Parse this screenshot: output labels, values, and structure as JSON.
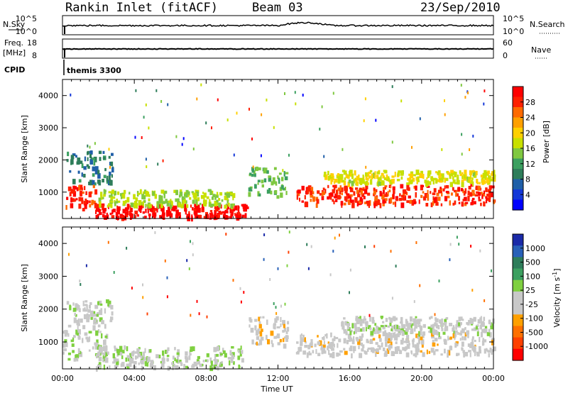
{
  "header": {
    "station": "Rankin Inlet (fitACF)",
    "beam": "Beam 03",
    "date": "23/Sep/2010"
  },
  "nsky_panel": {
    "left_label": "N.Sky",
    "right_label": "N.Search",
    "left_ticks": [
      "10^5",
      "10^0"
    ],
    "right_ticks": [
      "10^5",
      "10^0"
    ]
  },
  "freq_panel": {
    "left_label_1": "Freq.",
    "left_label_2": "[MHz]",
    "right_label": "Nave",
    "left_ticks": [
      "18",
      "8"
    ],
    "right_ticks": [
      "60",
      "0"
    ]
  },
  "cpid": {
    "label": "CPID",
    "mode": "themis 3300"
  },
  "power_panel": {
    "ylabel": "Slant Range [km]",
    "yticks": [
      "4000",
      "3000",
      "2000",
      "1000"
    ],
    "colorbar_title": "Power [dB]",
    "colorbar_labels": [
      "28",
      "24",
      "20",
      "16",
      "12",
      "8",
      "4"
    ],
    "colorbar_colors": [
      "#ff0000",
      "#ff2000",
      "#ff6a00",
      "#ffa000",
      "#ffd000",
      "#c8e000",
      "#7fc840",
      "#3ca060",
      "#2e7d5a",
      "#1f5fa8",
      "#1438d8",
      "#0000ff"
    ]
  },
  "velocity_panel": {
    "ylabel": "Slant Range [km]",
    "yticks": [
      "4000",
      "3000",
      "2000",
      "1000"
    ],
    "colorbar_title": "Velocity  [m s",
    "colorbar_title_sup": "-1",
    "colorbar_title_end": "]",
    "colorbar_labels": [
      "1000",
      "500",
      "100",
      "25",
      "-25",
      "-100",
      "-500",
      "-1000"
    ],
    "colorbar_colors": [
      "#1a2aa8",
      "#2860b8",
      "#2e7d5a",
      "#3ca060",
      "#7fd040",
      "#c8c8c8",
      "#c8c8c8",
      "#ffa000",
      "#ff7000",
      "#ff4000",
      "#ff0000"
    ]
  },
  "xaxis": {
    "label": "Time UT",
    "ticks": [
      "00:00",
      "04:00",
      "08:00",
      "12:00",
      "16:00",
      "20:00",
      "00:00"
    ]
  },
  "chart_data": {
    "type": "heatmap",
    "title": "Rankin Inlet (fitACF)  Beam 03  23/Sep/2010",
    "xlabel": "Time UT",
    "ylabel": "Slant Range [km]",
    "x_range_hours": [
      0,
      24
    ],
    "y_range_km": [
      180,
      4500
    ],
    "power": {
      "colorbar": "Power [dB]",
      "scale": [
        4,
        28
      ],
      "regions": [
        {
          "t0": 0.0,
          "t1": 1.8,
          "r0": 500,
          "r1": 1250,
          "value": 26
        },
        {
          "t0": 1.8,
          "t1": 10.3,
          "r0": 250,
          "r1": 650,
          "value": 28
        },
        {
          "t0": 2.0,
          "t1": 9.5,
          "r0": 600,
          "r1": 1100,
          "value": 16
        },
        {
          "t0": 0.2,
          "t1": 2.8,
          "r0": 1300,
          "r1": 2300,
          "value": 10
        },
        {
          "t0": 10.3,
          "t1": 12.5,
          "r0": 900,
          "r1": 1800,
          "value": 14
        },
        {
          "t0": 13.0,
          "t1": 24.0,
          "r0": 650,
          "r1": 1250,
          "value": 26
        },
        {
          "t0": 14.5,
          "t1": 24.0,
          "r0": 1300,
          "r1": 1700,
          "value": 18
        }
      ]
    },
    "velocity": {
      "colorbar": "Velocity [m s-1]",
      "scale": [
        -1000,
        1000
      ],
      "regions": [
        {
          "t0": 0.0,
          "t1": 2.5,
          "r0": 500,
          "r1": 1400,
          "value": 80
        },
        {
          "t0": 1.8,
          "t1": 10.0,
          "r0": 250,
          "r1": 900,
          "value": 60
        },
        {
          "t0": 0.2,
          "t1": 2.8,
          "r0": 1500,
          "r1": 2300,
          "value": 0
        },
        {
          "t0": 10.3,
          "t1": 12.5,
          "r0": 900,
          "r1": 1800,
          "value": -200
        },
        {
          "t0": 13.0,
          "t1": 24.0,
          "r0": 650,
          "r1": 1300,
          "value": -150
        },
        {
          "t0": 15.5,
          "t1": 24.0,
          "r0": 1300,
          "r1": 1800,
          "value": 0
        }
      ]
    }
  }
}
